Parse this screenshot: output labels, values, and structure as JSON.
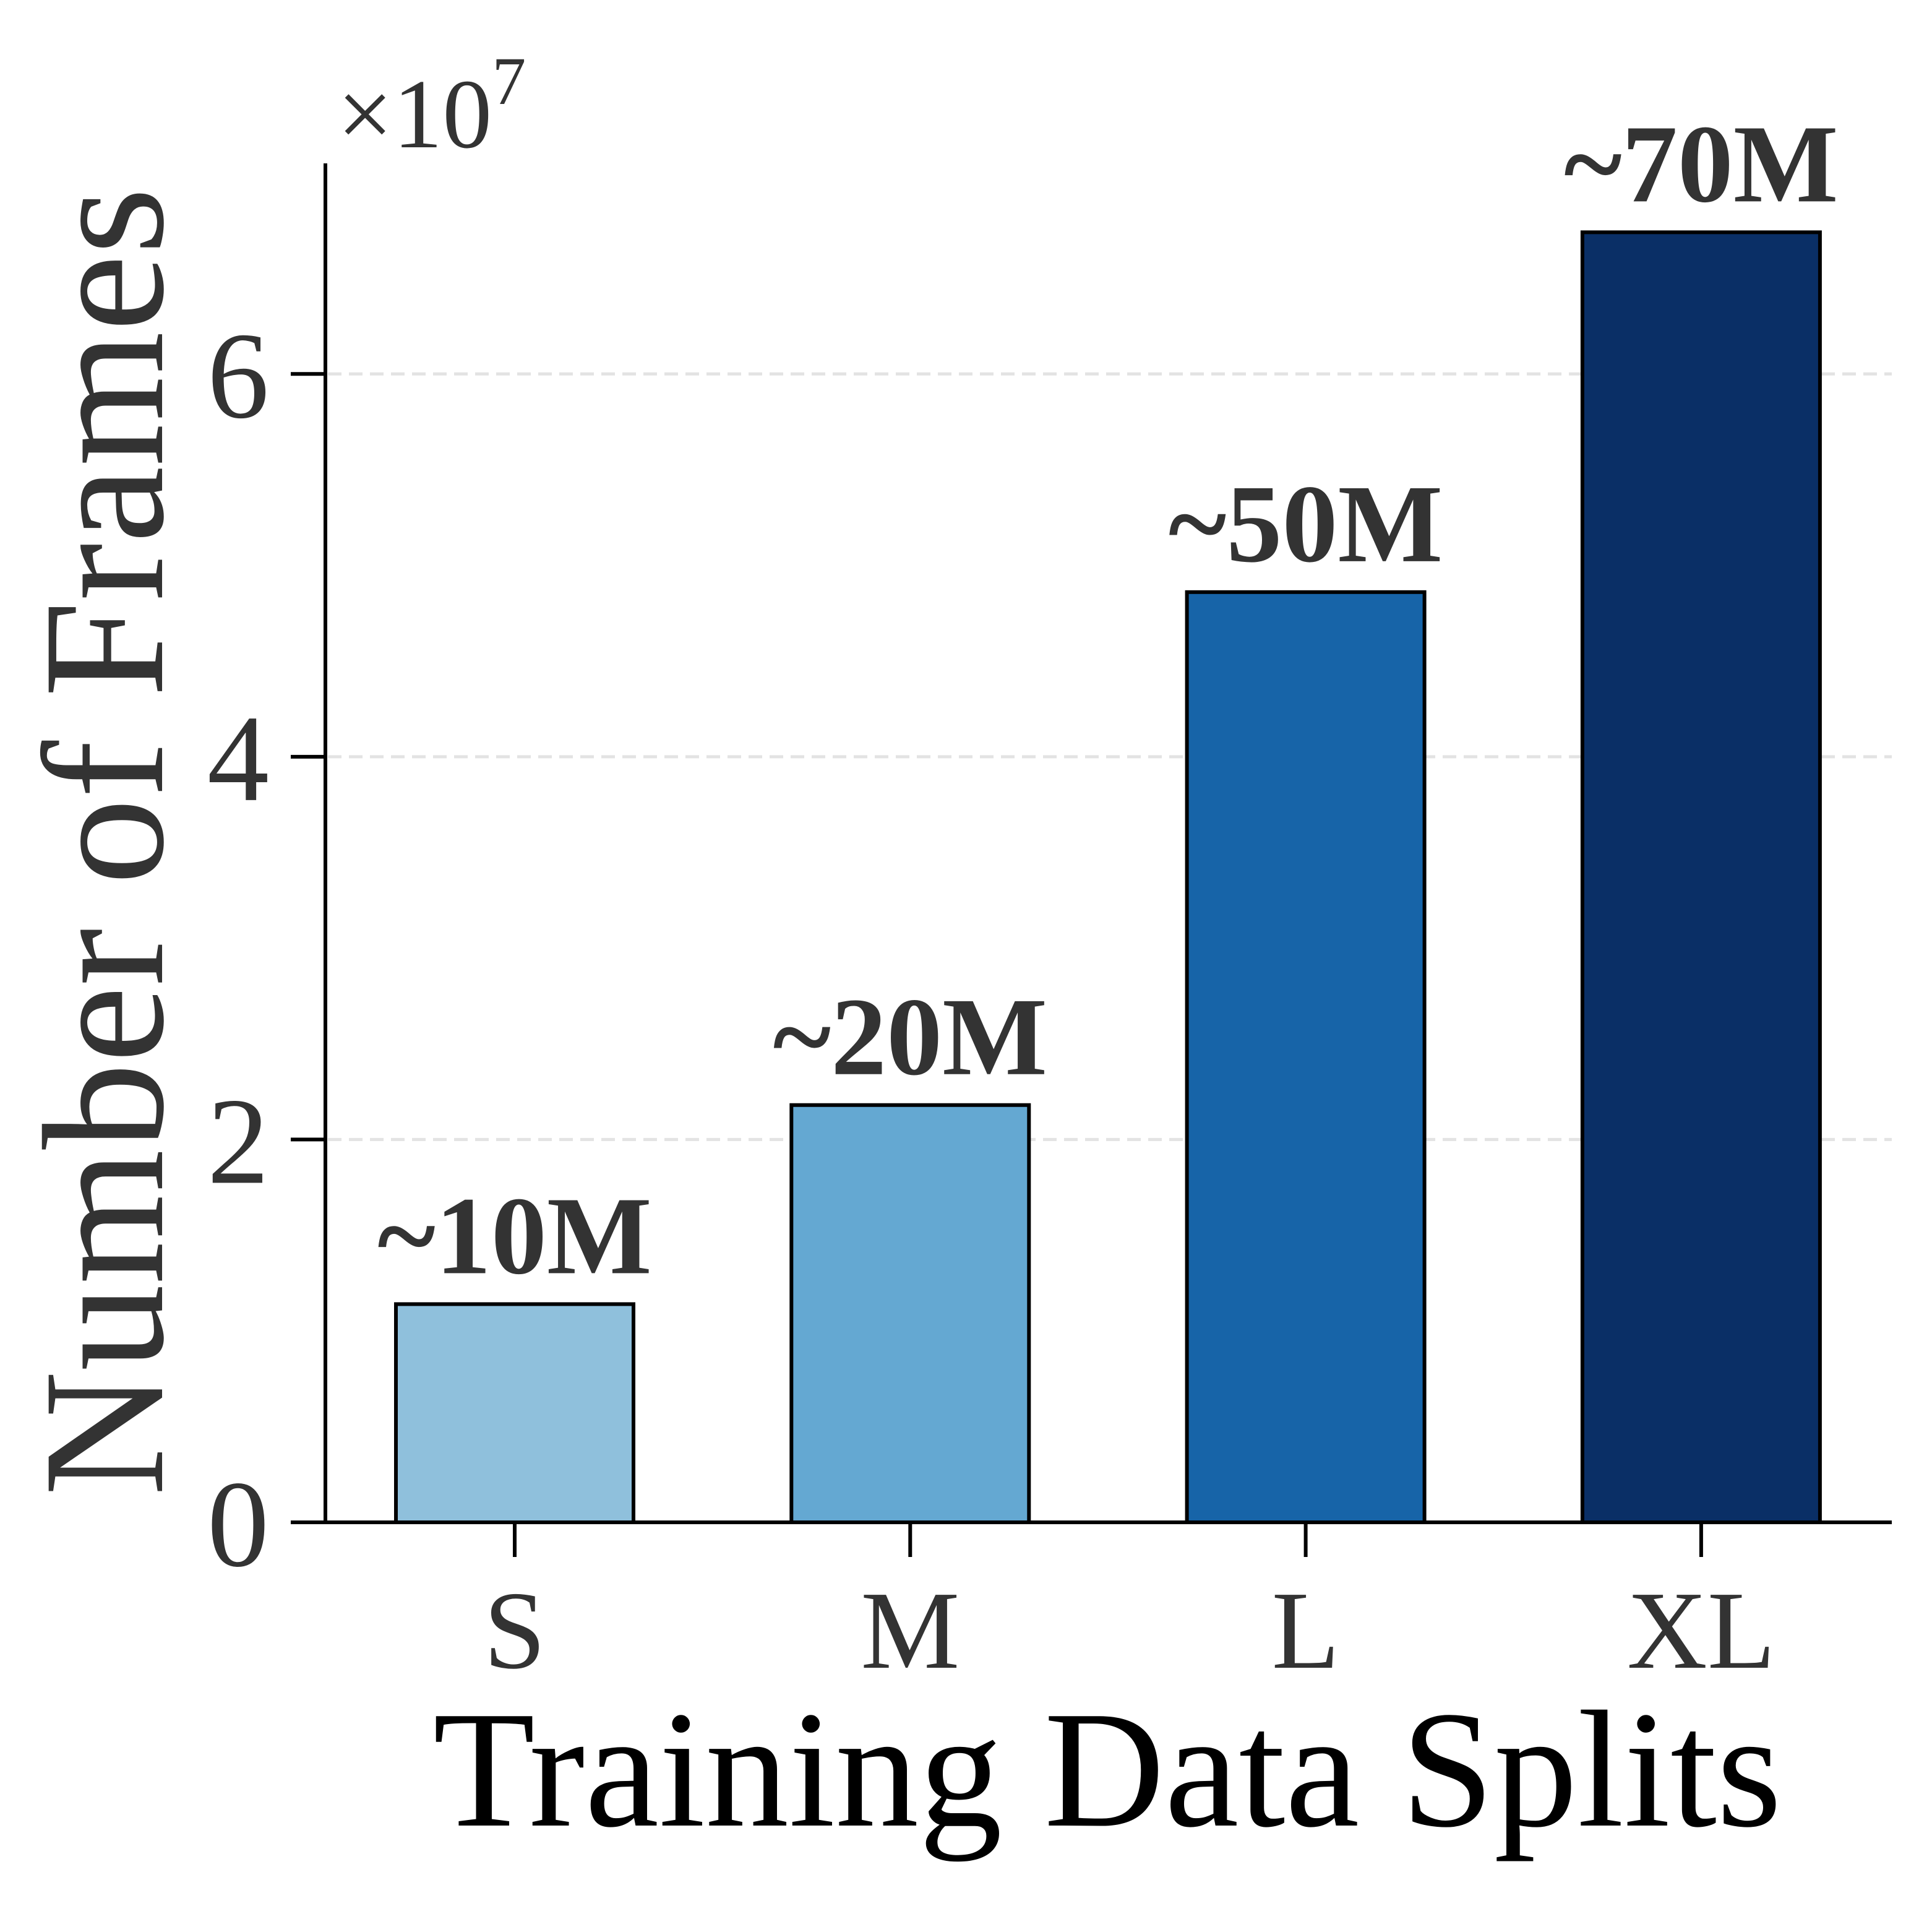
{
  "chart_data": {
    "type": "bar",
    "title": "",
    "xlabel": "Training Data Splits",
    "ylabel": "Number of Frames",
    "y_offset_text": {
      "base": "×10",
      "exponent": "7"
    },
    "categories": [
      "S",
      "M",
      "L",
      "XL"
    ],
    "values": [
      1.14,
      2.18,
      4.86,
      6.74
    ],
    "value_scale": 10000000,
    "data_labels": [
      "~10M",
      "~20M",
      "~50M",
      "~70M"
    ],
    "colors": [
      "#8fc0dc",
      "#64a8d2",
      "#1764a8",
      "#0a2f66"
    ],
    "ylim": [
      0,
      7.1
    ],
    "yticks": [
      0,
      2,
      4,
      6
    ],
    "ytick_labels": [
      "0",
      "2",
      "4",
      "6"
    ],
    "grid": "horizontal dashed, light gray",
    "legend": "none"
  }
}
